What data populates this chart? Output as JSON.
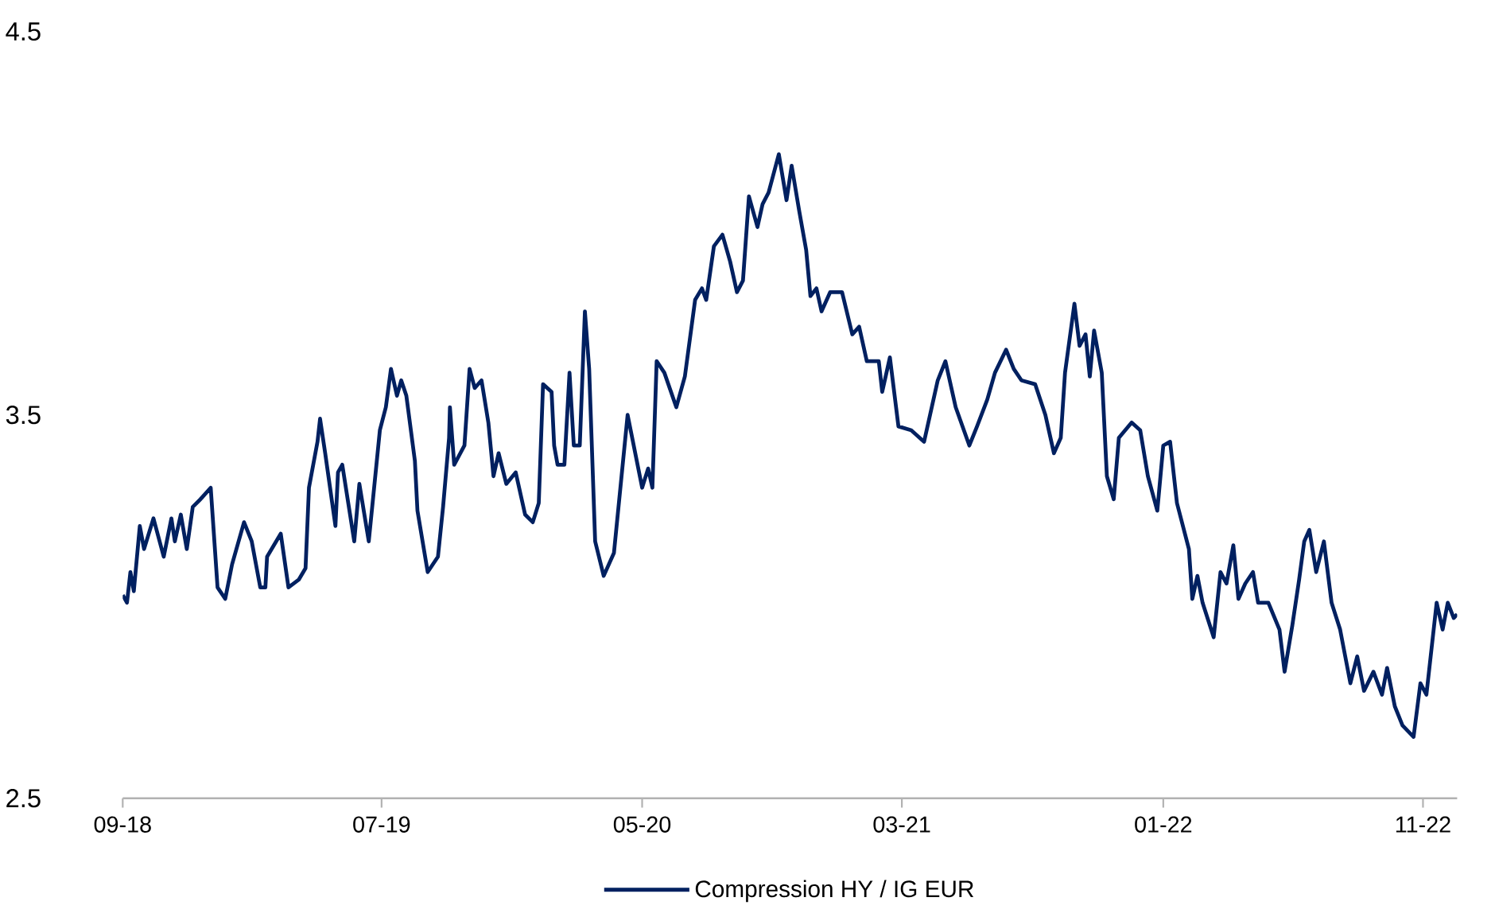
{
  "chart_data": {
    "type": "line",
    "line_style": "solid",
    "legend": "bottom",
    "xlim": [
      "2018-09-01",
      "2022-12-11"
    ],
    "xticks": [
      {
        "value": "2018-09-01",
        "label": "09-18"
      },
      {
        "value": "2019-07-01",
        "label": "07-19"
      },
      {
        "value": "2020-05-01",
        "label": "05-20"
      },
      {
        "value": "2021-03-01",
        "label": "03-21"
      },
      {
        "value": "2022-01-01",
        "label": "01-22"
      },
      {
        "value": "2022-11-01",
        "label": "11-22"
      }
    ],
    "ylim": [
      2.5,
      4.5
    ],
    "yticks": [
      2.5,
      3.5,
      4.5
    ],
    "x": [
      "2018-09-01",
      "2018-09-06",
      "2018-09-10",
      "2018-09-14",
      "2018-09-21",
      "2018-09-26",
      "2018-10-07",
      "2018-10-19",
      "2018-10-28",
      "2018-11-01",
      "2018-11-08",
      "2018-11-15",
      "2018-11-22",
      "2018-12-01",
      "2018-12-13",
      "2018-12-21",
      "2018-12-30",
      "2019-01-07",
      "2019-01-21",
      "2019-01-30",
      "2019-02-09",
      "2019-02-15",
      "2019-02-17",
      "2019-03-05",
      "2019-03-14",
      "2019-03-26",
      "2019-04-03",
      "2019-04-07",
      "2019-04-17",
      "2019-04-20",
      "2019-04-26",
      "2019-05-08",
      "2019-05-11",
      "2019-05-16",
      "2019-05-30",
      "2019-06-05",
      "2019-06-16",
      "2019-06-29",
      "2019-07-06",
      "2019-07-12",
      "2019-07-19",
      "2019-07-24",
      "2019-07-30",
      "2019-08-09",
      "2019-08-12",
      "2019-08-24",
      "2019-09-05",
      "2019-09-11",
      "2019-09-18",
      "2019-09-19",
      "2019-09-24",
      "2019-10-06",
      "2019-10-12",
      "2019-10-18",
      "2019-10-26",
      "2019-11-03",
      "2019-11-09",
      "2019-11-15",
      "2019-11-24",
      "2019-12-05",
      "2019-12-16",
      "2019-12-25",
      "2020-01-01",
      "2020-01-06",
      "2020-01-16",
      "2020-01-19",
      "2020-01-23",
      "2020-01-31",
      "2020-02-06",
      "2020-02-11",
      "2020-02-18",
      "2020-02-24",
      "2020-02-29",
      "2020-03-07",
      "2020-03-17",
      "2020-03-29",
      "2020-04-14",
      "2020-05-01",
      "2020-05-08",
      "2020-05-13",
      "2020-05-18",
      "2020-05-27",
      "2020-06-10",
      "2020-06-20",
      "2020-07-02",
      "2020-07-10",
      "2020-07-15",
      "2020-07-24",
      "2020-08-03",
      "2020-08-12",
      "2020-08-20",
      "2020-08-27",
      "2020-09-03",
      "2020-09-13",
      "2020-09-19",
      "2020-09-26",
      "2020-10-08",
      "2020-10-17",
      "2020-10-23",
      "2020-11-01",
      "2020-11-09",
      "2020-11-14",
      "2020-11-21",
      "2020-11-27",
      "2020-12-07",
      "2020-12-21",
      "2021-01-02",
      "2021-01-10",
      "2021-01-19",
      "2021-02-02",
      "2021-02-06",
      "2021-02-15",
      "2021-02-25",
      "2021-03-12",
      "2021-03-27",
      "2021-04-03",
      "2021-04-12",
      "2021-04-21",
      "2021-05-03",
      "2021-05-19",
      "2021-05-28",
      "2021-06-09",
      "2021-06-18",
      "2021-07-01",
      "2021-07-10",
      "2021-07-19",
      "2021-08-04",
      "2021-08-16",
      "2021-08-26",
      "2021-09-03",
      "2021-09-08",
      "2021-09-19",
      "2021-09-25",
      "2021-10-02",
      "2021-10-07",
      "2021-10-12",
      "2021-10-21",
      "2021-10-27",
      "2021-11-04",
      "2021-11-10",
      "2021-11-25",
      "2021-12-05",
      "2021-12-14",
      "2021-12-25",
      "2022-01-01",
      "2022-01-09",
      "2022-01-17",
      "2022-01-31",
      "2022-02-04",
      "2022-02-10",
      "2022-02-16",
      "2022-03-01",
      "2022-03-09",
      "2022-03-16",
      "2022-03-24",
      "2022-03-30",
      "2022-04-07",
      "2022-04-16",
      "2022-04-22",
      "2022-05-04",
      "2022-05-17",
      "2022-05-23",
      "2022-06-01",
      "2022-06-09",
      "2022-06-15",
      "2022-06-21",
      "2022-06-29",
      "2022-07-08",
      "2022-07-17",
      "2022-07-27",
      "2022-08-02",
      "2022-08-08",
      "2022-08-16",
      "2022-08-24",
      "2022-09-04",
      "2022-09-14",
      "2022-09-20",
      "2022-09-29",
      "2022-10-08",
      "2022-10-21",
      "2022-10-29",
      "2022-11-05",
      "2022-11-14",
      "2022-11-17",
      "2022-11-24",
      "2022-11-30",
      "2022-12-07",
      "2022-12-11"
    ],
    "series": [
      {
        "name": "Compression HY / IG EUR",
        "color": "#002060",
        "values": [
          3.03,
          3.01,
          3.09,
          3.04,
          3.21,
          3.15,
          3.23,
          3.13,
          3.23,
          3.17,
          3.24,
          3.15,
          3.26,
          3.28,
          3.31,
          3.05,
          3.02,
          3.11,
          3.22,
          3.17,
          3.05,
          3.05,
          3.13,
          3.19,
          3.05,
          3.07,
          3.1,
          3.31,
          3.43,
          3.49,
          3.4,
          3.21,
          3.35,
          3.37,
          3.17,
          3.32,
          3.17,
          3.46,
          3.52,
          3.62,
          3.55,
          3.59,
          3.55,
          3.38,
          3.25,
          3.09,
          3.13,
          3.26,
          3.44,
          3.52,
          3.37,
          3.42,
          3.62,
          3.57,
          3.59,
          3.48,
          3.34,
          3.4,
          3.32,
          3.35,
          3.24,
          3.22,
          3.27,
          3.58,
          3.56,
          3.42,
          3.37,
          3.37,
          3.61,
          3.42,
          3.42,
          3.77,
          3.62,
          3.17,
          3.08,
          3.14,
          3.5,
          3.31,
          3.36,
          3.31,
          3.64,
          3.61,
          3.52,
          3.6,
          3.8,
          3.83,
          3.8,
          3.94,
          3.97,
          3.9,
          3.82,
          3.85,
          4.07,
          3.99,
          4.05,
          4.08,
          4.18,
          4.06,
          4.15,
          4.03,
          3.93,
          3.81,
          3.83,
          3.77,
          3.82,
          3.82,
          3.71,
          3.73,
          3.64,
          3.64,
          3.56,
          3.65,
          3.47,
          3.46,
          3.43,
          3.5,
          3.59,
          3.64,
          3.52,
          3.42,
          3.47,
          3.54,
          3.61,
          3.67,
          3.62,
          3.59,
          3.58,
          3.5,
          3.4,
          3.44,
          3.61,
          3.79,
          3.68,
          3.71,
          3.6,
          3.72,
          3.61,
          3.34,
          3.28,
          3.44,
          3.48,
          3.46,
          3.34,
          3.25,
          3.42,
          3.43,
          3.27,
          3.15,
          3.02,
          3.08,
          3.01,
          2.92,
          3.09,
          3.06,
          3.16,
          3.02,
          3.06,
          3.09,
          3.01,
          3.01,
          2.94,
          2.83,
          2.95,
          3.07,
          3.17,
          3.2,
          3.09,
          3.17,
          3.01,
          2.94,
          2.87,
          2.8,
          2.87,
          2.78,
          2.83,
          2.77,
          2.84,
          2.74,
          2.69,
          2.66,
          2.8,
          2.77,
          2.95,
          3.01,
          2.94,
          3.01,
          2.97,
          2.98
        ]
      }
    ]
  }
}
